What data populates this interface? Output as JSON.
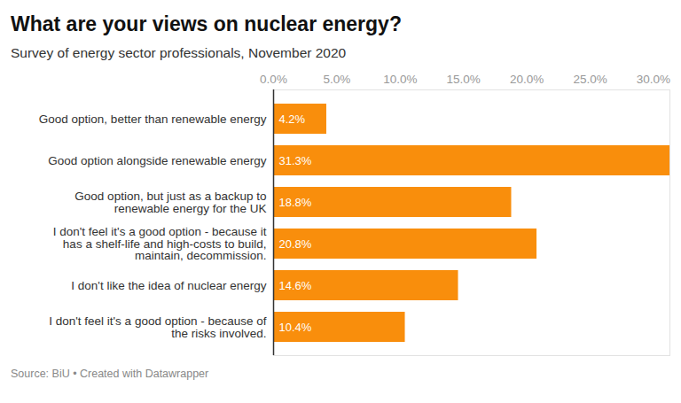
{
  "chart_data": {
    "type": "bar",
    "orientation": "horizontal",
    "title": "What are your views on nuclear energy?",
    "subtitle": "Survey of energy sector professionals, November 2020",
    "caption": "Source: BiU • Created with Datawrapper",
    "categories": [
      "Good option, better than renewable energy",
      "Good option alongside renewable energy",
      "Good option, but just as a backup to renewable energy for the UK",
      "I don't feel it's a good option - because it has a shelf-life and high-costs to build, maintain, decommission.",
      "I don't like the idea of nuclear energy",
      "I don't feel it's a good option - because of the risks involved."
    ],
    "values": [
      4.2,
      31.3,
      18.8,
      20.8,
      14.6,
      10.4
    ],
    "value_labels": [
      "4.2%",
      "31.3%",
      "18.8%",
      "20.8%",
      "14.6%",
      "10.4%"
    ],
    "color": "#f98e0c",
    "xlim": [
      0,
      31.3
    ],
    "xticks": [
      {
        "value": 0,
        "label": "0.0%"
      },
      {
        "value": 5,
        "label": "5.0%"
      },
      {
        "value": 10,
        "label": "10.0%"
      },
      {
        "value": 15,
        "label": "15.0%"
      },
      {
        "value": 20,
        "label": "20.0%"
      },
      {
        "value": 25,
        "label": "25.0%"
      },
      {
        "value": 30,
        "label": "30.0%"
      }
    ],
    "data_labels": true,
    "grid": false
  }
}
